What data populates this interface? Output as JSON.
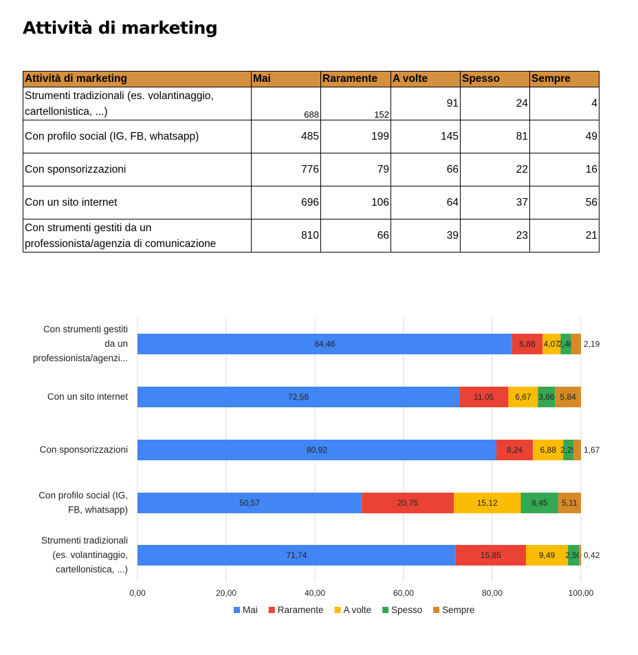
{
  "title": "Attività di marketing",
  "table": {
    "headers": [
      "Attività di marketing",
      "Mai",
      "Raramente",
      "A volte",
      "Spesso",
      "Sempre"
    ],
    "rows": [
      {
        "label": [
          "Strumenti tradizionali (es. volantinaggio,",
          "cartellonistica, ...)"
        ],
        "values": [
          "688",
          "152",
          "91",
          "24",
          "4"
        ]
      },
      {
        "label": [
          "Con profilo social (IG, FB, whatsapp)"
        ],
        "values": [
          "485",
          "199",
          "145",
          "81",
          "49"
        ]
      },
      {
        "label": [
          "Con sponsorizzazioni"
        ],
        "values": [
          "776",
          "79",
          "66",
          "22",
          "16"
        ]
      },
      {
        "label": [
          "Con un sito internet"
        ],
        "values": [
          "696",
          "106",
          "64",
          "37",
          "56"
        ]
      },
      {
        "label": [
          "Con strumenti gestiti da un",
          "professionista/agenzia di comunicazione"
        ],
        "values": [
          "810",
          "66",
          "39",
          "23",
          "21"
        ]
      }
    ]
  },
  "chart_data": {
    "type": "bar",
    "orientation": "horizontal-stacked",
    "categories": [
      [
        "Con strumenti gestiti",
        "da un",
        "professionista/agenzi..."
      ],
      [
        "Con un sito internet"
      ],
      [
        "Con sponsorizzazioni"
      ],
      [
        "Con profilo social (IG,",
        "FB, whatsapp)"
      ],
      [
        "Strumenti tradizionali",
        "(es. volantinaggio,",
        "cartellonistica, ...)"
      ]
    ],
    "series": [
      {
        "name": "Mai",
        "color": "#4285F4",
        "values": [
          84.46,
          72.58,
          80.92,
          50.57,
          71.74
        ],
        "labels": [
          "84,46",
          "72,58",
          "80,92",
          "50,57",
          "71,74"
        ]
      },
      {
        "name": "Raramente",
        "color": "#EA4335",
        "values": [
          6.88,
          11.05,
          8.24,
          20.75,
          15.85
        ],
        "labels": [
          "6,88",
          "11,05",
          "8,24",
          "20,75",
          "15,85"
        ]
      },
      {
        "name": "A volte",
        "color": "#FBBC04",
        "values": [
          4.07,
          6.67,
          6.88,
          15.12,
          9.49
        ],
        "labels": [
          "4,07",
          "6,67",
          "6,88",
          "15,12",
          "9,49"
        ]
      },
      {
        "name": "Spesso",
        "color": "#34A853",
        "values": [
          2.4,
          3.86,
          2.29,
          8.45,
          2.5
        ],
        "labels": [
          "2,40",
          "3,86",
          "2,29",
          "8,45",
          "2,50"
        ]
      },
      {
        "name": "Sempre",
        "color": "#D68A27",
        "values": [
          2.19,
          5.84,
          1.67,
          5.11,
          0.42
        ],
        "labels": [
          "2,19",
          "5,84",
          "1,67",
          "5,11",
          "0,42"
        ]
      }
    ],
    "xlim": [
      0,
      100
    ],
    "xticks": [
      "0,00",
      "20,00",
      "40,00",
      "60,00",
      "80,00",
      "100,00"
    ],
    "grid": true,
    "legend": "bottom"
  }
}
